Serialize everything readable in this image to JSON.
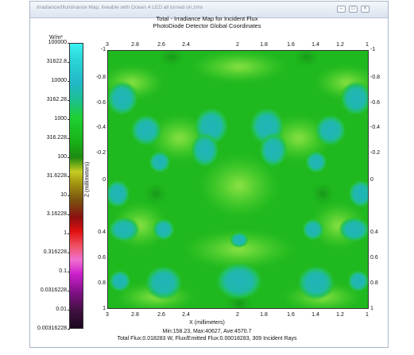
{
  "window": {
    "title": "Irradiance/Illuminance Map, liveable with Ocean 4 LED all turned on.zmx",
    "controls": [
      "minimize-icon",
      "maximize-icon",
      "close-icon"
    ]
  },
  "plot": {
    "title": "Total - Irradiance Map for Incident Flux",
    "subtitle": "PhotoDiode Detector     Global Coordinates",
    "x_axis_label": "X (millimeters)",
    "y_axis_label": "Z (millimeters)",
    "top_ticks": [
      "3",
      "2.8",
      "2.6",
      "2.4",
      "2",
      "1.8",
      "1.6",
      "1.4",
      "1.2",
      "1"
    ],
    "bottom_ticks": [
      "3",
      "2.8",
      "2.6",
      "2.4",
      "2",
      "1.8",
      "1.6",
      "1.4",
      "1.2",
      "1"
    ],
    "left_ticks": [
      "-1",
      "-0.8",
      "-0.6",
      "-0.4",
      "-0.2",
      "0",
      "0.4",
      "0.6",
      "0.8",
      "1"
    ],
    "right_ticks": [
      "-1",
      "-0.8",
      "-0.6",
      "-0.4",
      "-0.2",
      "0",
      "0.4",
      "0.6",
      "0.8",
      "1"
    ]
  },
  "colorbar": {
    "unit": "W/m²",
    "ticks": [
      "100000",
      "31622.8",
      "10000",
      "3162.28",
      "1000",
      "316.228",
      "100",
      "31.6228",
      "10",
      "3.16228",
      "1",
      "0.316228",
      "0.1",
      "0.0316228",
      "0.01",
      "0.00316228"
    ]
  },
  "stats": {
    "line1": "Min:158.23, Max:40627, Ave:4570.7",
    "line2": "Total Flux:0.018283 W, Flux/Emitted Flux:0.00018283, 309 Incident Rays"
  }
}
